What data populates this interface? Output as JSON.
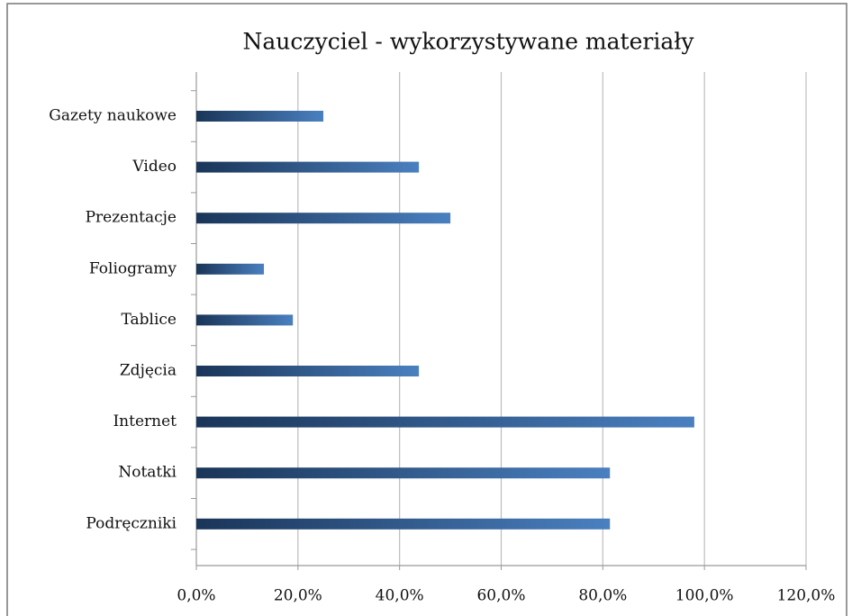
{
  "chart_data": {
    "type": "bar",
    "orientation": "horizontal",
    "title": "Nauczyciel - wykorzystywane materiały",
    "categories": [
      "Gazety naukowe",
      "Video",
      "Prezentacje",
      "Foliogramy",
      "Tablice",
      "Zdjęcia",
      "Internet",
      "Notatki",
      "Podręczniki"
    ],
    "values": [
      25.0,
      43.8,
      50.0,
      13.3,
      19.0,
      43.8,
      98.0,
      81.4,
      81.4
    ],
    "color": "#3c6ea8",
    "xlim": [
      0,
      120
    ],
    "xticks": [
      {
        "value": 0,
        "label": "0,0%"
      },
      {
        "value": 20,
        "label": "20,0%"
      },
      {
        "value": 40,
        "label": "40,0%"
      },
      {
        "value": 60,
        "label": "60,0%"
      },
      {
        "value": 80,
        "label": "80,0%"
      },
      {
        "value": 100,
        "label": "100,0%"
      },
      {
        "value": 120,
        "label": "120,0%"
      }
    ],
    "grid": true
  }
}
